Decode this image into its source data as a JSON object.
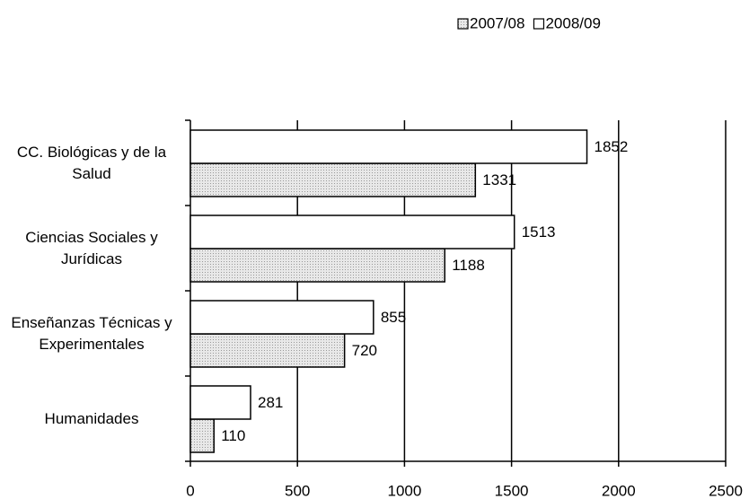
{
  "chart_data": {
    "type": "hbar",
    "categories": [
      "CC. Biológicas y de la Salud",
      "Ciencias Sociales y Jurídicas",
      "Enseñanzas Técnicas y Experimentales",
      "Humanidades"
    ],
    "series": [
      {
        "name": "2007/08",
        "color": "#d9d9d9",
        "values": [
          1331,
          1188,
          720,
          110
        ]
      },
      {
        "name": "2008/09",
        "color": "#ffffff",
        "values": [
          1852,
          1513,
          855,
          281
        ]
      }
    ],
    "xlim": [
      0,
      2500
    ],
    "xticks": [
      0,
      500,
      1000,
      1500,
      2000,
      2500
    ],
    "grid": true
  }
}
